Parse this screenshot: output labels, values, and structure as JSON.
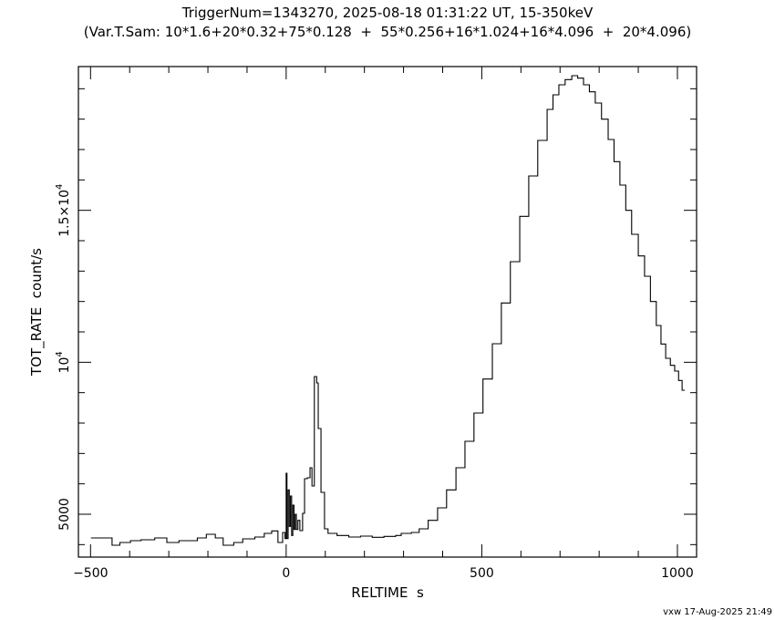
{
  "chart_data": {
    "type": "line",
    "style": "step",
    "title": "TriggerNum=1343270, 2025-08-18 01:31:22 UT, 15-350keV",
    "subtitle": "(Var.T.Sam: 10*1.6+20*0.32+75*0.128  +  55*0.256+16*1.024+16*4.096  +  20*4.096)",
    "xlabel": "RELTIME  s",
    "ylabel": "TOT_RATE  count/s",
    "xlim": [
      -531,
      1049
    ],
    "ylim": [
      3590,
      19730
    ],
    "grid": false,
    "line_color": "#000000",
    "x_ticks": [
      {
        "value": -500,
        "label": "−500"
      },
      {
        "value": 0,
        "label": "0"
      },
      {
        "value": 500,
        "label": "500"
      },
      {
        "value": 1000,
        "label": "1000"
      }
    ],
    "y_ticks": [
      {
        "value": 5000,
        "label": "5000",
        "sup": ""
      },
      {
        "value": 10000,
        "label": "10",
        "sup": "4"
      },
      {
        "value": 15000,
        "label": "1.5×10",
        "sup": "4"
      }
    ],
    "x": [
      -499,
      -468,
      -445,
      -425,
      -398,
      -371,
      -336,
      -305,
      -274,
      -227,
      -204,
      -181,
      -161,
      -134,
      -111,
      -80,
      -56,
      -37,
      -21,
      -9,
      -3,
      0,
      2,
      5,
      8,
      11,
      14,
      17,
      20,
      23,
      26,
      30,
      35,
      42,
      47,
      54,
      61,
      66,
      72,
      78,
      82,
      89,
      98,
      107,
      130,
      160,
      190,
      220,
      250,
      280,
      294,
      320,
      340,
      363,
      387,
      410,
      434,
      457,
      480,
      503,
      527,
      550,
      573,
      597,
      620,
      643,
      667,
      682,
      697,
      713,
      730,
      745,
      760,
      775,
      790,
      806,
      823,
      838,
      853,
      868,
      883,
      900,
      916,
      931,
      946,
      958,
      970,
      982,
      993,
      1003,
      1012
    ],
    "y": [
      4220,
      4220,
      3980,
      4070,
      4130,
      4160,
      4220,
      4070,
      4130,
      4220,
      4340,
      4220,
      3980,
      4070,
      4190,
      4250,
      4370,
      4450,
      4070,
      4400,
      4200,
      6350,
      4200,
      5800,
      4600,
      5600,
      4300,
      5300,
      4500,
      5000,
      4500,
      4800,
      4460,
      5030,
      6170,
      6200,
      6530,
      5930,
      9530,
      9320,
      7820,
      5720,
      4520,
      4370,
      4300,
      4250,
      4280,
      4240,
      4270,
      4300,
      4370,
      4400,
      4520,
      4800,
      5210,
      5800,
      6530,
      7400,
      8330,
      9450,
      10610,
      11950,
      13310,
      14800,
      16130,
      17300,
      18320,
      18800,
      19130,
      19300,
      19430,
      19350,
      19130,
      18900,
      18530,
      18000,
      17330,
      16600,
      15830,
      15000,
      14210,
      13500,
      12830,
      12000,
      11210,
      10600,
      10130,
      9900,
      9710,
      9400,
      9080
    ]
  },
  "footer": "vxw 17-Aug-2025 21:49"
}
